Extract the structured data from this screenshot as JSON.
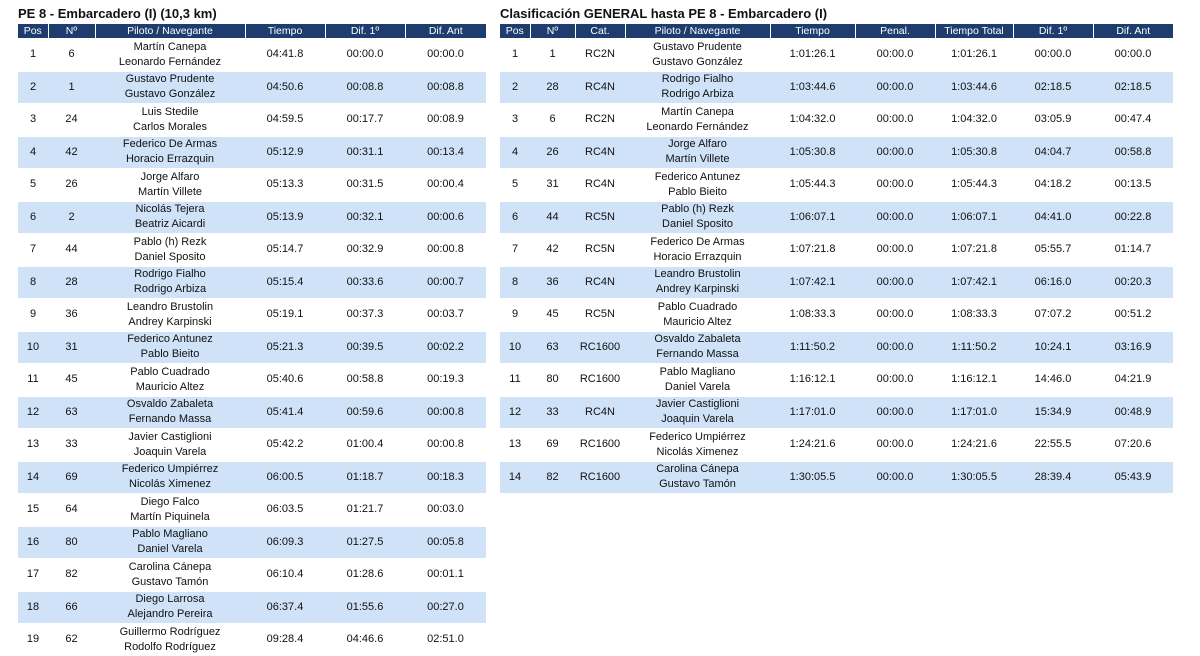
{
  "stage": {
    "title": "PE 8 - Embarcadero (I) (10,3 km)",
    "headers": [
      "Pos",
      "Nº",
      "Piloto / Navegante",
      "Tiempo",
      "Dif. 1º",
      "Dif. Ant"
    ],
    "rows": [
      [
        "1",
        "6",
        [
          "Martín Canepa",
          "Leonardo Fernández"
        ],
        "04:41.8",
        "00:00.0",
        "00:00.0"
      ],
      [
        "2",
        "1",
        [
          "Gustavo Prudente",
          "Gustavo González"
        ],
        "04:50.6",
        "00:08.8",
        "00:08.8"
      ],
      [
        "3",
        "24",
        [
          "Luis Stedile",
          "Carlos Morales"
        ],
        "04:59.5",
        "00:17.7",
        "00:08.9"
      ],
      [
        "4",
        "42",
        [
          "Federico De Armas",
          "Horacio Errazquin"
        ],
        "05:12.9",
        "00:31.1",
        "00:13.4"
      ],
      [
        "5",
        "26",
        [
          "Jorge Alfaro",
          "Martín Villete"
        ],
        "05:13.3",
        "00:31.5",
        "00:00.4"
      ],
      [
        "6",
        "2",
        [
          "Nicolás Tejera",
          "Beatriz Aicardi"
        ],
        "05:13.9",
        "00:32.1",
        "00:00.6"
      ],
      [
        "7",
        "44",
        [
          "Pablo (h) Rezk",
          "Daniel Sposito"
        ],
        "05:14.7",
        "00:32.9",
        "00:00.8"
      ],
      [
        "8",
        "28",
        [
          "Rodrigo Fialho",
          "Rodrigo Arbiza"
        ],
        "05:15.4",
        "00:33.6",
        "00:00.7"
      ],
      [
        "9",
        "36",
        [
          "Leandro Brustolin",
          "Andrey Karpinski"
        ],
        "05:19.1",
        "00:37.3",
        "00:03.7"
      ],
      [
        "10",
        "31",
        [
          "Federico Antunez",
          "Pablo Bieito"
        ],
        "05:21.3",
        "00:39.5",
        "00:02.2"
      ],
      [
        "11",
        "45",
        [
          "Pablo Cuadrado",
          "Mauricio Altez"
        ],
        "05:40.6",
        "00:58.8",
        "00:19.3"
      ],
      [
        "12",
        "63",
        [
          "Osvaldo Zabaleta",
          "Fernando Massa"
        ],
        "05:41.4",
        "00:59.6",
        "00:00.8"
      ],
      [
        "13",
        "33",
        [
          "Javier Castiglioni",
          "Joaquin Varela"
        ],
        "05:42.2",
        "01:00.4",
        "00:00.8"
      ],
      [
        "14",
        "69",
        [
          "Federico Umpiérrez",
          "Nicolás Ximenez"
        ],
        "06:00.5",
        "01:18.7",
        "00:18.3"
      ],
      [
        "15",
        "64",
        [
          "Diego Falco",
          "Martín Piquinela"
        ],
        "06:03.5",
        "01:21.7",
        "00:03.0"
      ],
      [
        "16",
        "80",
        [
          "Pablo Magliano",
          "Daniel Varela"
        ],
        "06:09.3",
        "01:27.5",
        "00:05.8"
      ],
      [
        "17",
        "82",
        [
          "Carolina Cánepa",
          "Gustavo Tamón"
        ],
        "06:10.4",
        "01:28.6",
        "00:01.1"
      ],
      [
        "18",
        "66",
        [
          "Diego Larrosa",
          "Alejandro Pereira"
        ],
        "06:37.4",
        "01:55.6",
        "00:27.0"
      ],
      [
        "19",
        "62",
        [
          "Guillermo Rodríguez",
          "Rodolfo Rodríguez"
        ],
        "09:28.4",
        "04:46.6",
        "02:51.0"
      ]
    ]
  },
  "general": {
    "title": "Clasificación GENERAL hasta PE 8 - Embarcadero (I)",
    "headers": [
      "Pos",
      "Nº",
      "Cat.",
      "Piloto / Navegante",
      "Tiempo",
      "Penal.",
      "Tiempo Total",
      "Dif. 1º",
      "Dif. Ant"
    ],
    "rows": [
      [
        "1",
        "1",
        "RC2N",
        [
          "Gustavo Prudente",
          "Gustavo González"
        ],
        "1:01:26.1",
        "00:00.0",
        "1:01:26.1",
        "00:00.0",
        "00:00.0"
      ],
      [
        "2",
        "28",
        "RC4N",
        [
          "Rodrigo Fialho",
          "Rodrigo Arbiza"
        ],
        "1:03:44.6",
        "00:00.0",
        "1:03:44.6",
        "02:18.5",
        "02:18.5"
      ],
      [
        "3",
        "6",
        "RC2N",
        [
          "Martín Canepa",
          "Leonardo Fernández"
        ],
        "1:04:32.0",
        "00:00.0",
        "1:04:32.0",
        "03:05.9",
        "00:47.4"
      ],
      [
        "4",
        "26",
        "RC4N",
        [
          "Jorge Alfaro",
          "Martín Villete"
        ],
        "1:05:30.8",
        "00:00.0",
        "1:05:30.8",
        "04:04.7",
        "00:58.8"
      ],
      [
        "5",
        "31",
        "RC4N",
        [
          "Federico Antunez",
          "Pablo Bieito"
        ],
        "1:05:44.3",
        "00:00.0",
        "1:05:44.3",
        "04:18.2",
        "00:13.5"
      ],
      [
        "6",
        "44",
        "RC5N",
        [
          "Pablo (h) Rezk",
          "Daniel Sposito"
        ],
        "1:06:07.1",
        "00:00.0",
        "1:06:07.1",
        "04:41.0",
        "00:22.8"
      ],
      [
        "7",
        "42",
        "RC5N",
        [
          "Federico De Armas",
          "Horacio Errazquin"
        ],
        "1:07:21.8",
        "00:00.0",
        "1:07:21.8",
        "05:55.7",
        "01:14.7"
      ],
      [
        "8",
        "36",
        "RC4N",
        [
          "Leandro Brustolin",
          "Andrey Karpinski"
        ],
        "1:07:42.1",
        "00:00.0",
        "1:07:42.1",
        "06:16.0",
        "00:20.3"
      ],
      [
        "9",
        "45",
        "RC5N",
        [
          "Pablo Cuadrado",
          "Mauricio Altez"
        ],
        "1:08:33.3",
        "00:00.0",
        "1:08:33.3",
        "07:07.2",
        "00:51.2"
      ],
      [
        "10",
        "63",
        "RC1600",
        [
          "Osvaldo Zabaleta",
          "Fernando Massa"
        ],
        "1:11:50.2",
        "00:00.0",
        "1:11:50.2",
        "10:24.1",
        "03:16.9"
      ],
      [
        "11",
        "80",
        "RC1600",
        [
          "Pablo Magliano",
          "Daniel Varela"
        ],
        "1:16:12.1",
        "00:00.0",
        "1:16:12.1",
        "14:46.0",
        "04:21.9"
      ],
      [
        "12",
        "33",
        "RC4N",
        [
          "Javier Castiglioni",
          "Joaquin Varela"
        ],
        "1:17:01.0",
        "00:00.0",
        "1:17:01.0",
        "15:34.9",
        "00:48.9"
      ],
      [
        "13",
        "69",
        "RC1600",
        [
          "Federico Umpiérrez",
          "Nicolás Ximenez"
        ],
        "1:24:21.6",
        "00:00.0",
        "1:24:21.6",
        "22:55.5",
        "07:20.6"
      ],
      [
        "14",
        "82",
        "RC1600",
        [
          "Carolina Cánepa",
          "Gustavo Tamón"
        ],
        "1:30:05.5",
        "00:00.0",
        "1:30:05.5",
        "28:39.4",
        "05:43.9"
      ]
    ]
  }
}
